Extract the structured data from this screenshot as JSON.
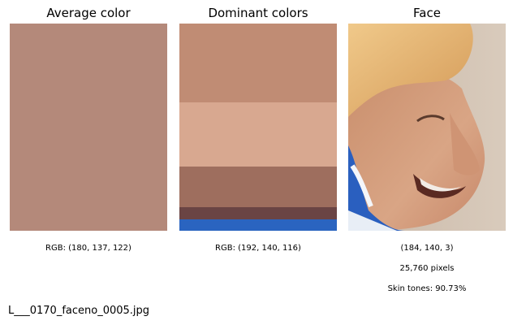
{
  "panels": {
    "average": {
      "title": "Average color",
      "color": "#b4897a",
      "caption": "RGB: (180, 137, 122)"
    },
    "dominant": {
      "title": "Dominant colors",
      "caption": "RGB: (192, 140, 116)",
      "stripes": [
        {
          "color": "#c08c74",
          "share": 0.38
        },
        {
          "color": "#d8a890",
          "share": 0.31
        },
        {
          "color": "#9e6e5e",
          "share": 0.195
        },
        {
          "color": "#6a4444",
          "share": 0.06
        },
        {
          "color": "#2a64c0",
          "share": 0.055
        }
      ]
    },
    "face": {
      "title": "Face",
      "caption_lines": [
        "(184, 140, 3)",
        "25,760 pixels",
        "Skin tones: 90.73%"
      ]
    }
  },
  "filename": "L___0170_faceno_0005.jpg"
}
